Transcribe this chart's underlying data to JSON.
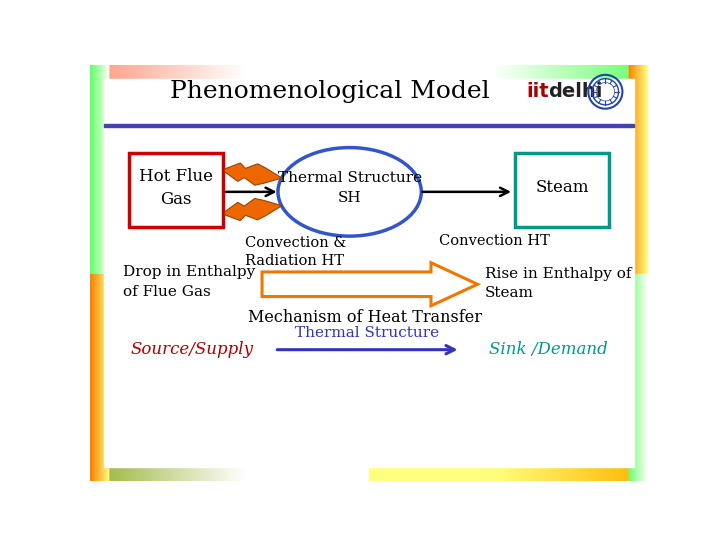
{
  "title": "Phenomenological Model",
  "title_fontsize": 18,
  "iit_text_iit": "iit",
  "iit_text_delhi": "delhi",
  "iit_color": "#aa0000",
  "delhi_color": "#222222",
  "hot_flue_gas_text": "Hot Flue\nGas",
  "thermal_structure_text": "Thermal Structure\nSH",
  "steam_text": "Steam",
  "convection_radiation_text": "Convection &\nRadiation HT",
  "convection_ht_text": "Convection HT",
  "drop_enthalpy_text": "Drop in Enthalpy\nof Flue Gas",
  "rise_enthalpy_text": "Rise in Enthalpy of\nSteam",
  "mechanism_text": "Mechanism of Heat Transfer",
  "source_supply_text": "Source/Supply",
  "thermal_structure_bottom_text": "Thermal Structure",
  "sink_demand_text": "Sink /Demand",
  "red_box_color": "#cc0000",
  "teal_box_color": "#009988",
  "blue_ellipse_color": "#3355cc",
  "orange_arrow_color": "#ee7700",
  "blue_arrow_color": "#3333bb",
  "source_supply_color": "#aa0000",
  "sink_demand_color": "#009988",
  "lightning_color": "#ee6600",
  "lightning_edge": "#994400",
  "sep_line_color": "#4444aa",
  "white": "#ffffff",
  "black": "#000000"
}
